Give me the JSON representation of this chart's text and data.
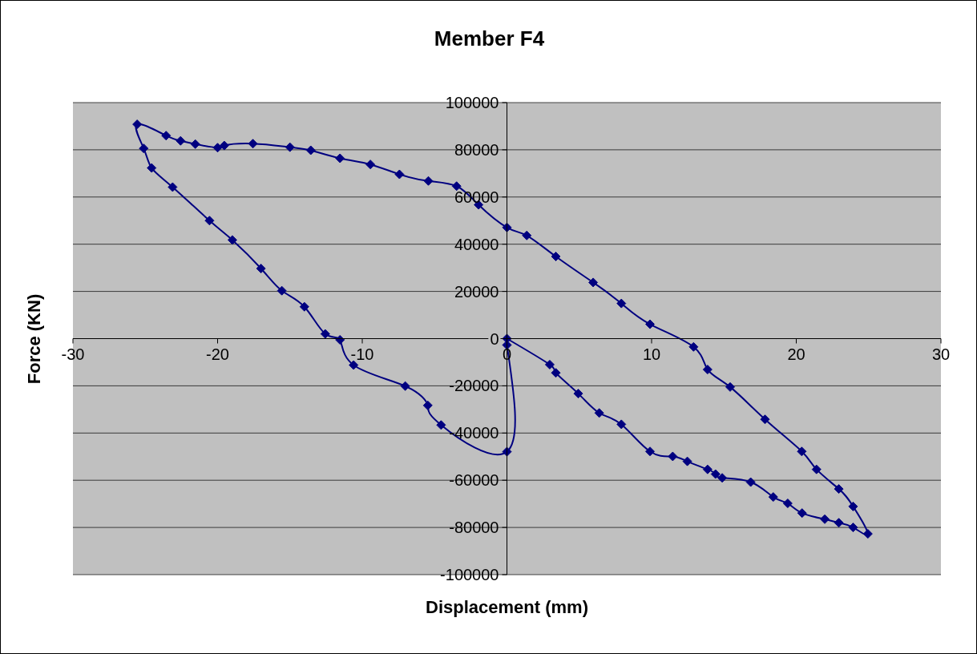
{
  "chart_data": {
    "type": "line",
    "title": "Member F4",
    "xlabel": "Displacement (mm)",
    "ylabel": "Force (KN)",
    "x": [
      0,
      2.96,
      3.38,
      4.93,
      6.38,
      7.91,
      9.89,
      11.46,
      12.47,
      13.87,
      14.42,
      14.88,
      16.85,
      18.41,
      19.41,
      20.4,
      21.97,
      22.94,
      23.93,
      24.95,
      23.93,
      22.94,
      21.4,
      20.38,
      17.84,
      15.43,
      13.87,
      12.9,
      9.89,
      7.91,
      5.96,
      3.38,
      1.37,
      0,
      -1.96,
      -3.48,
      -5.43,
      -7.43,
      -9.44,
      -11.54,
      -13.56,
      -15.0,
      -17.56,
      -19.54,
      -20.0,
      -21.54,
      -22.56,
      -23.56,
      -25.56,
      -25.11,
      -24.56,
      -23.11,
      -20.56,
      -18.98,
      -17.0,
      -15.56,
      -14.0,
      -12.56,
      -11.54,
      -10.6,
      -7.03,
      -5.47,
      -4.55,
      0,
      0
    ],
    "values": [
      0,
      -11000,
      -14500,
      -23300,
      -31500,
      -36300,
      -47800,
      -49900,
      -52000,
      -55400,
      -57400,
      -59000,
      -60800,
      -67100,
      -69800,
      -73900,
      -76500,
      -78000,
      -80000,
      -82700,
      -71100,
      -63700,
      -55400,
      -47800,
      -34200,
      -20500,
      -13100,
      -3500,
      6100,
      14900,
      23800,
      34800,
      43700,
      47100,
      56700,
      64600,
      66800,
      69600,
      73800,
      76400,
      79800,
      81100,
      82600,
      81800,
      80900,
      82400,
      83800,
      86000,
      90800,
      80600,
      72300,
      64200,
      50000,
      41800,
      29700,
      20300,
      13500,
      2000,
      -500,
      -11200,
      -20100,
      -28300,
      -36600,
      -47900,
      -2700
    ],
    "color": "#000080",
    "marker": "diamond",
    "grid": "y",
    "xlim": [
      -30,
      30
    ],
    "xticks": [
      -30,
      -20,
      -10,
      0,
      10,
      20,
      30
    ],
    "ylim": [
      -100000,
      100000
    ],
    "yticks": [
      -100000,
      -80000,
      -60000,
      -40000,
      -20000,
      0,
      20000,
      40000,
      60000,
      80000,
      100000
    ]
  }
}
